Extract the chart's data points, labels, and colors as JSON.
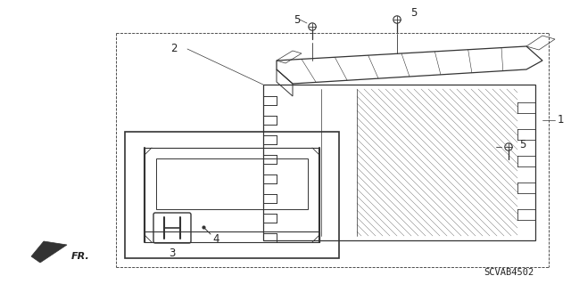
{
  "bg_color": "#ffffff",
  "line_color": "#333333",
  "text_color": "#222222",
  "diagram_code": "SCVAB4502",
  "font_size_labels": 8.5,
  "font_size_code": 7.5,
  "figsize": [
    6.4,
    3.19
  ],
  "dpi": 100
}
